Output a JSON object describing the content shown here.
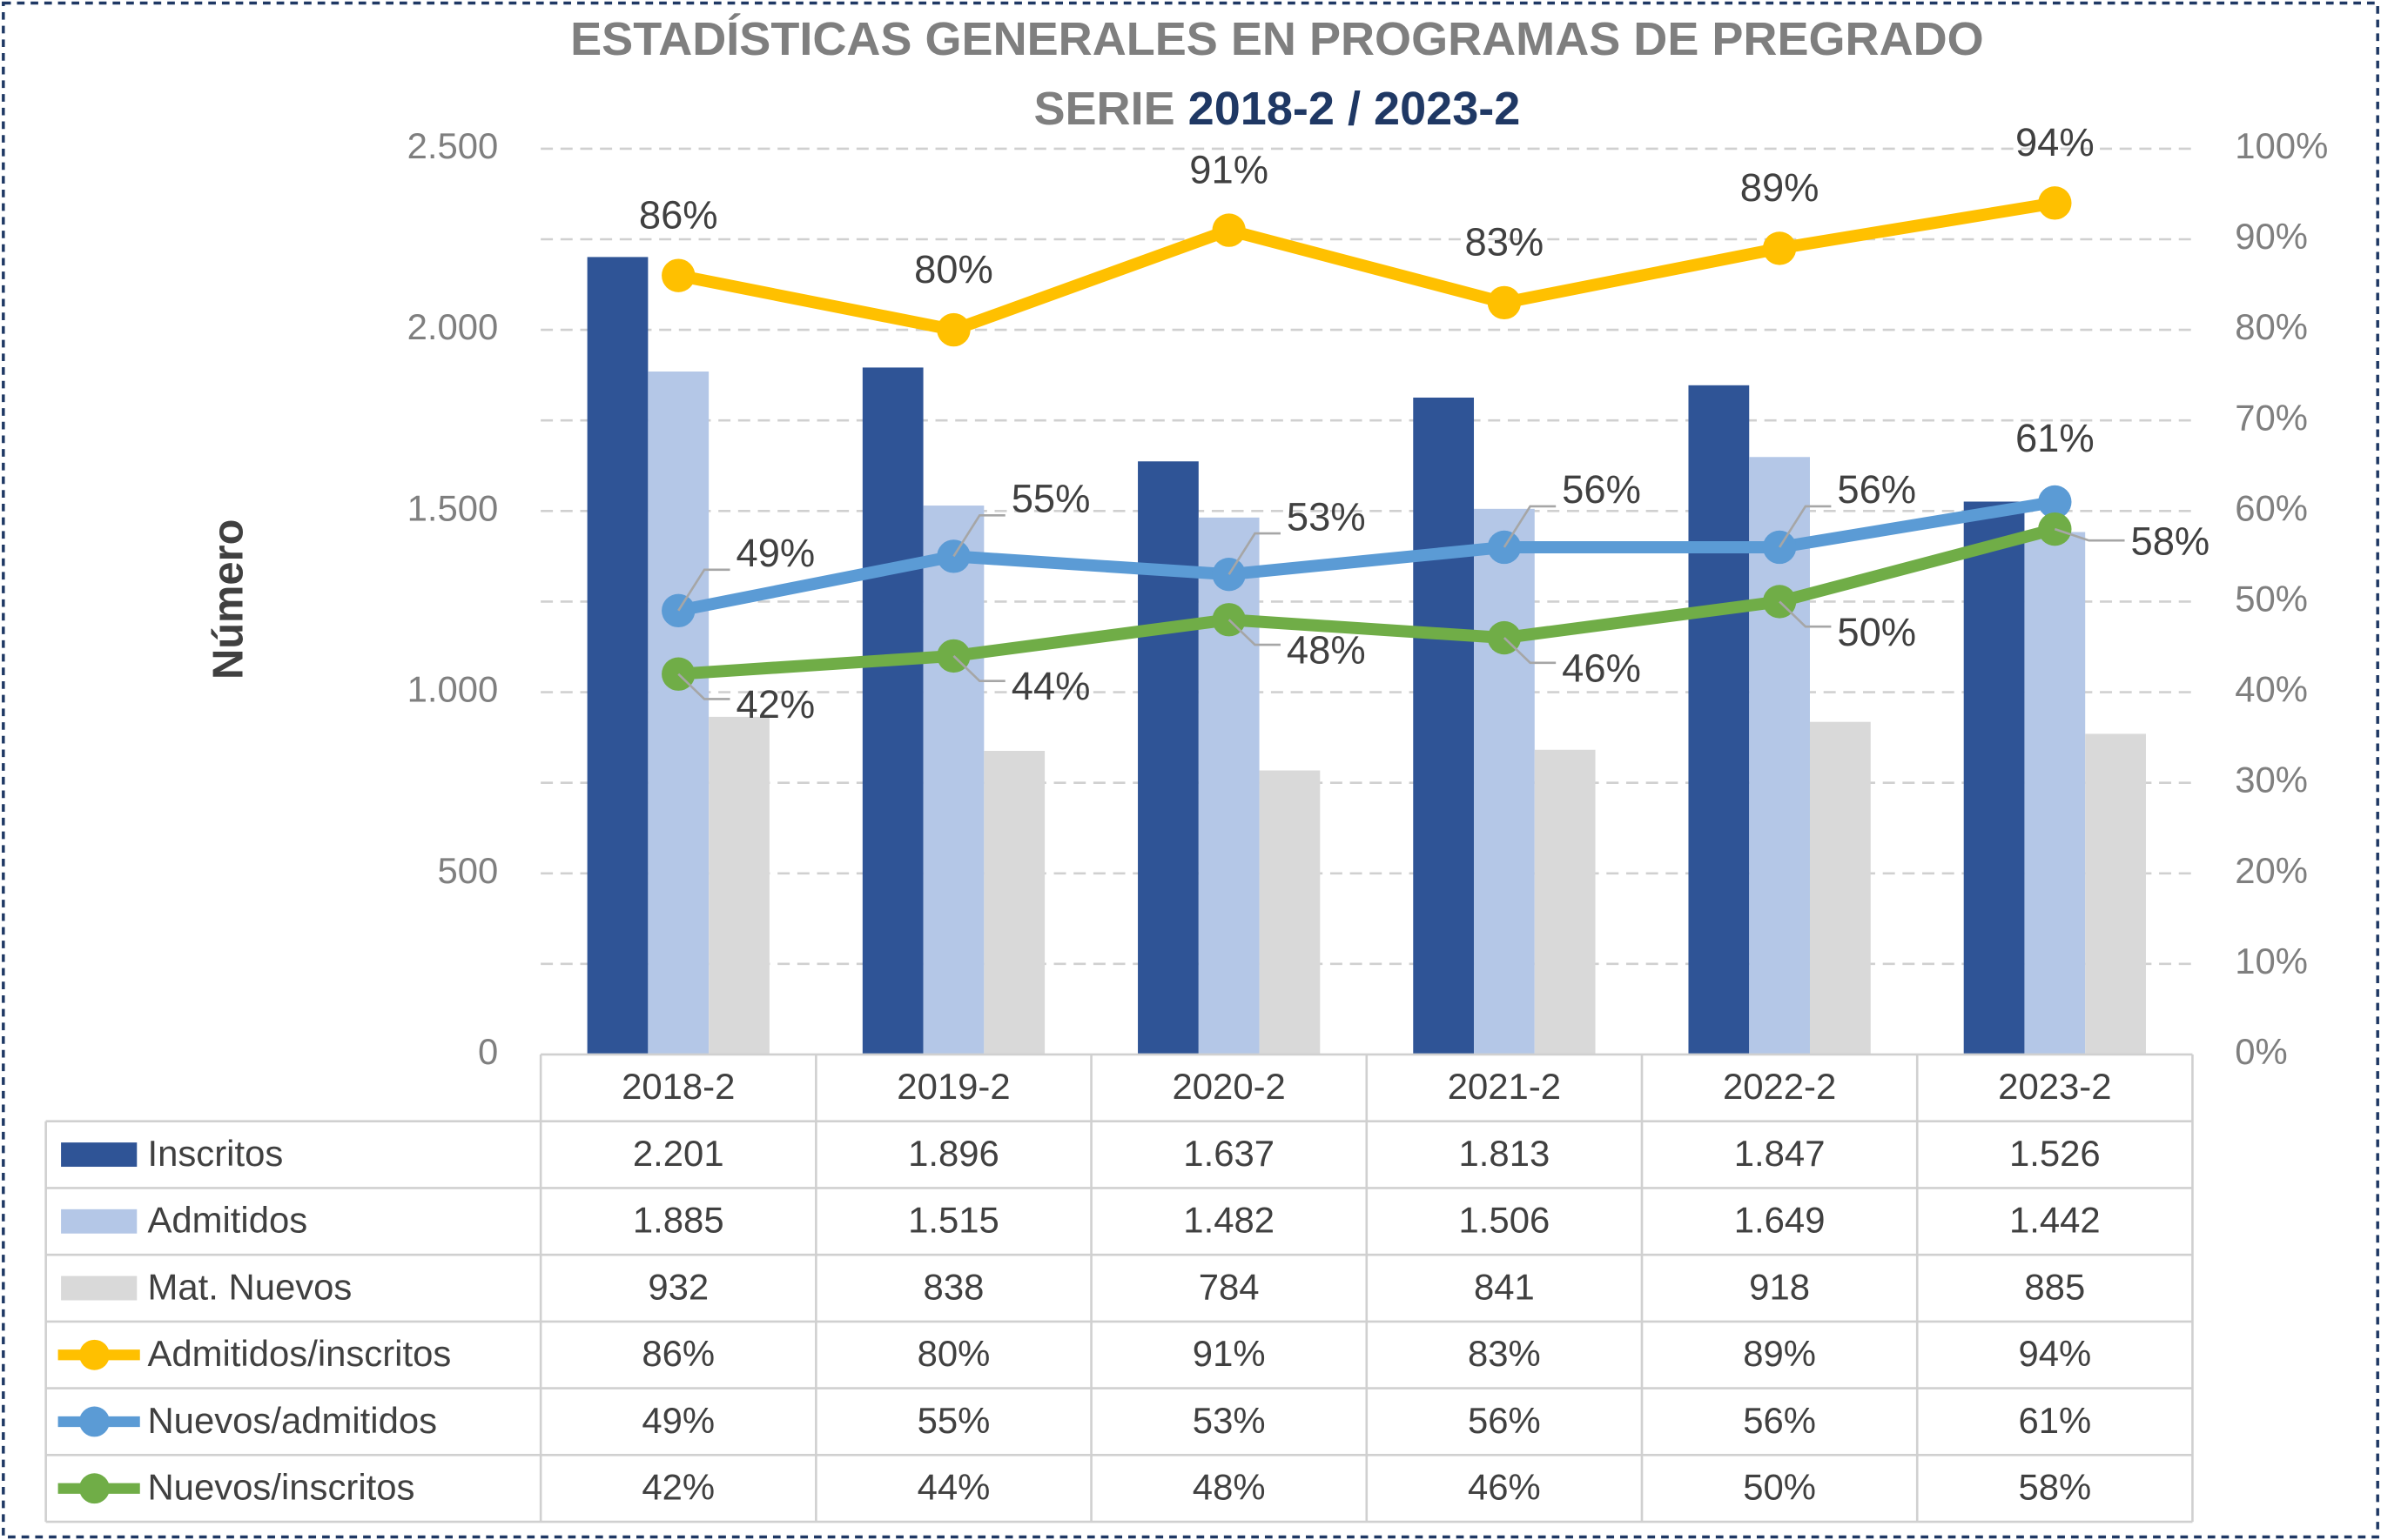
{
  "chart_data": {
    "type": "combo",
    "title": "ESTADÍSTICAS GENERALES EN PROGRAMAS DE PREGRADO",
    "subtitle": {
      "prefix": "SERIE",
      "highlight": "2018-2 / 2023-2"
    },
    "y_label": "Número",
    "categories": [
      "2018-2",
      "2019-2",
      "2020-2",
      "2021-2",
      "2022-2",
      "2023-2"
    ],
    "ylim": [
      0,
      2500
    ],
    "yticks": [
      0,
      500,
      {
        "value": 1000,
        "label": "1.000"
      },
      {
        "value": 1500,
        "label": "1.500"
      },
      {
        "value": 2000,
        "label": "2.000"
      },
      {
        "value": 2500,
        "label": "2.500"
      }
    ],
    "y2lim": [
      0,
      100
    ],
    "y2ticks": [
      {
        "value": 0,
        "label": "0%"
      },
      {
        "value": 10,
        "label": "10%"
      },
      {
        "value": 20,
        "label": "20%"
      },
      {
        "value": 30,
        "label": "30%"
      },
      {
        "value": 40,
        "label": "40%"
      },
      {
        "value": 50,
        "label": "50%"
      },
      {
        "value": 60,
        "label": "60%"
      },
      {
        "value": 70,
        "label": "70%"
      },
      {
        "value": 80,
        "label": "80%"
      },
      {
        "value": 90,
        "label": "90%"
      },
      {
        "value": 100,
        "label": "100%"
      }
    ],
    "grid": true,
    "series": [
      {
        "name": "Inscritos",
        "type": "bar",
        "color": "#2f5496",
        "values": [
          2201,
          1896,
          1637,
          1813,
          1847,
          1526
        ],
        "value_labels": [
          "2.201",
          "1.896",
          "1.637",
          "1.813",
          "1.847",
          "1.526"
        ]
      },
      {
        "name": "Admitidos",
        "type": "bar",
        "color": "#b4c7e7",
        "values": [
          1885,
          1515,
          1482,
          1506,
          1649,
          1442
        ],
        "value_labels": [
          "1.885",
          "1.515",
          "1.482",
          "1.506",
          "1.649",
          "1.442"
        ]
      },
      {
        "name": "Mat. Nuevos",
        "type": "bar",
        "color": "#d9d9d9",
        "values": [
          932,
          838,
          784,
          841,
          918,
          885
        ]
      },
      {
        "name": "Admitidos/inscritos",
        "type": "line",
        "axis": "y2",
        "color": "#ffc000",
        "values": [
          86,
          80,
          91,
          83,
          89,
          94
        ],
        "value_labels": [
          "86%",
          "80%",
          "91%",
          "83%",
          "89%",
          "94%"
        ]
      },
      {
        "name": "Nuevos/admitidos",
        "type": "line",
        "axis": "y2",
        "color": "#5b9bd5",
        "values": [
          49,
          55,
          53,
          56,
          56,
          61
        ],
        "value_labels": [
          "49%",
          "55%",
          "53%",
          "56%",
          "56%",
          "61%"
        ]
      },
      {
        "name": "Nuevos/inscritos",
        "type": "line",
        "axis": "y2",
        "color": "#70ad47",
        "values": [
          42,
          44,
          48,
          46,
          50,
          58
        ],
        "value_labels": [
          "42%",
          "44%",
          "48%",
          "46%",
          "50%",
          "58%"
        ]
      }
    ]
  }
}
